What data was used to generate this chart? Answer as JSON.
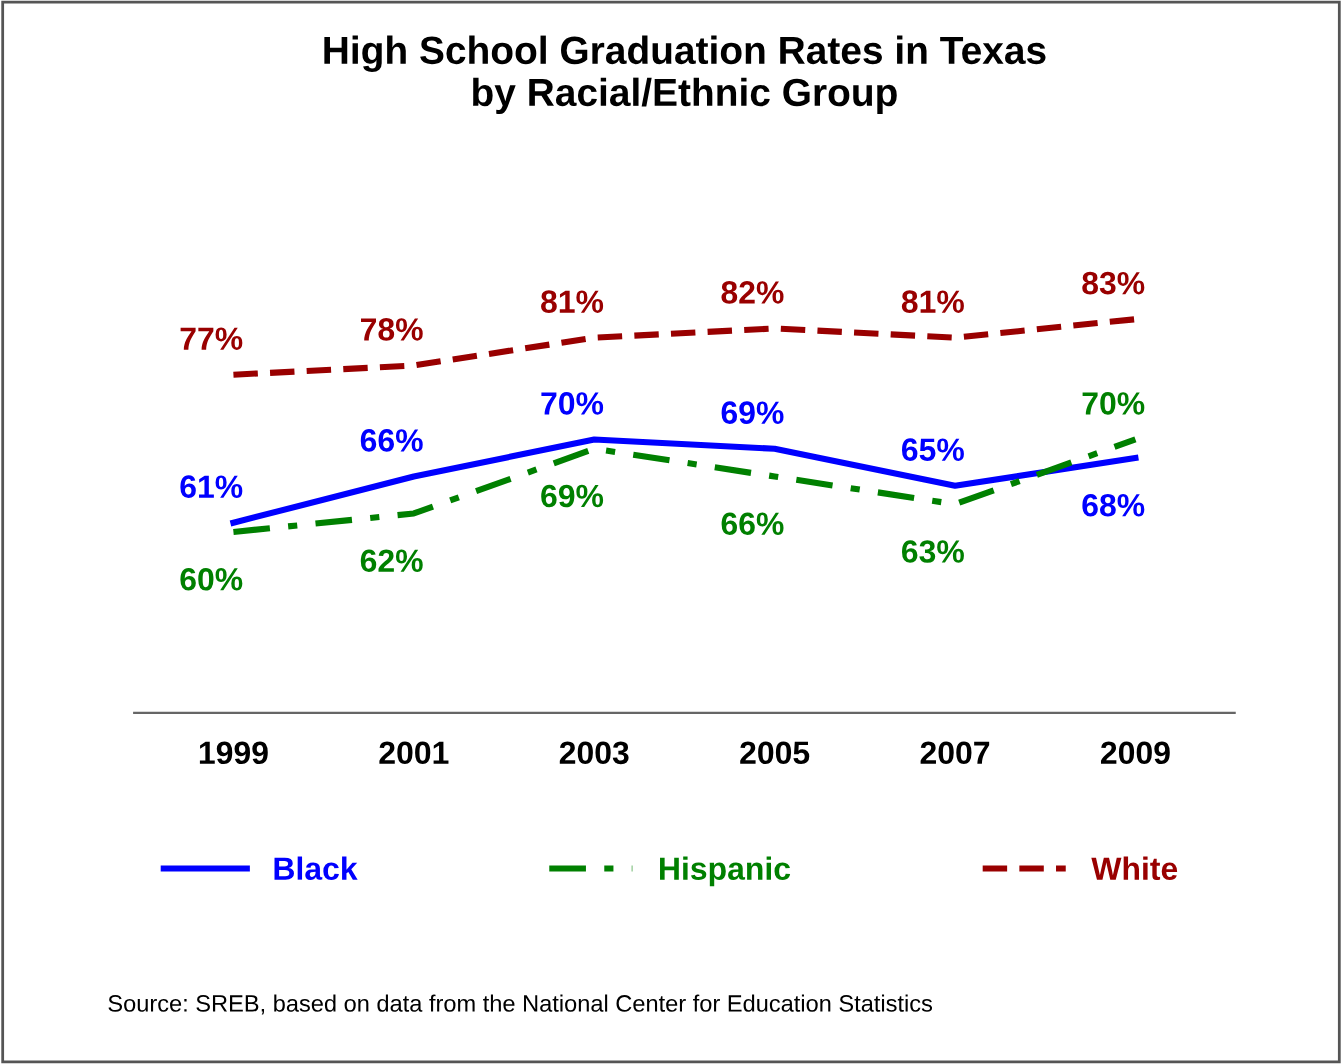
{
  "chart_data": {
    "type": "line",
    "title": "High School Graduation Rates in Texas\nby Racial/Ethnic Group",
    "categories": [
      "1999",
      "2001",
      "2003",
      "2005",
      "2007",
      "2009"
    ],
    "series": [
      {
        "name": "Black",
        "color": "#0000ff",
        "line_style": "solid",
        "values": [
          61,
          66,
          70,
          69,
          65,
          68
        ],
        "value_labels": [
          "61%",
          "66%",
          "70%",
          "69%",
          "65%",
          "68%"
        ]
      },
      {
        "name": "Hispanic",
        "color": "#008000",
        "line_style": "dashdot",
        "values": [
          60,
          62,
          69,
          66,
          63,
          70
        ],
        "value_labels": [
          "60%",
          "62%",
          "69%",
          "66%",
          "63%",
          "70%"
        ]
      },
      {
        "name": "White",
        "color": "#990000",
        "line_style": "dashed",
        "values": [
          77,
          78,
          81,
          82,
          81,
          83
        ],
        "value_labels": [
          "77%",
          "78%",
          "81%",
          "82%",
          "81%",
          "83%"
        ]
      }
    ],
    "legend": "bottom",
    "marker": "none",
    "annotations": [
      "Source: SREB, based on data from the National Center for Education Statistics"
    ]
  }
}
